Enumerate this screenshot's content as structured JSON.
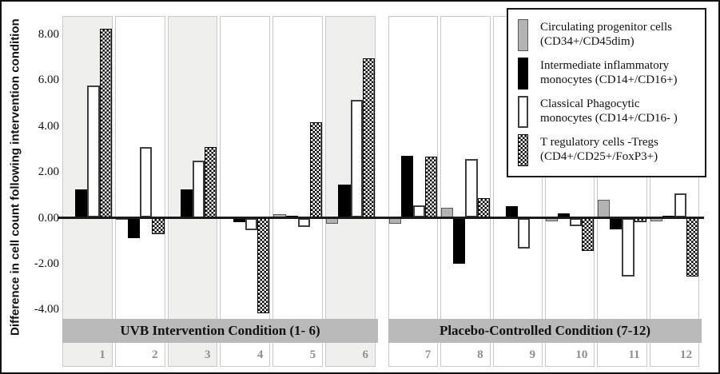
{
  "figure": {
    "y_axis_title": "Difference in cell count following intervention condition",
    "sections": [
      {
        "label": "UVB Intervention Condition (1- 6)"
      },
      {
        "label": "Placebo-Controlled Condition (7-12)"
      }
    ]
  },
  "chart_data": {
    "type": "bar",
    "title": "",
    "xlabel": "",
    "ylabel": "Difference in cell count following intervention condition",
    "ylim": [
      -4.6,
      8.8
    ],
    "grid": false,
    "legend_position": "top-right",
    "yticks": [
      8,
      6,
      4,
      2,
      0,
      -2,
      -4
    ],
    "ytick_labels": [
      "8.00",
      "6.00",
      "4.00",
      "2.00",
      "0.00",
      "-2.00",
      "-4.00"
    ],
    "categories": [
      "1",
      "2",
      "3",
      "4",
      "5",
      "6",
      "7",
      "8",
      "9",
      "10",
      "11",
      "12"
    ],
    "shaded_categories": [
      "1",
      "3",
      "6"
    ],
    "section_ranges": [
      {
        "label": "UVB Intervention Condition (1- 6)",
        "from": "1",
        "to": "6"
      },
      {
        "label": "Placebo-Controlled Condition (7-12)",
        "from": "7",
        "to": "12"
      }
    ],
    "series": [
      {
        "name": "Circulating progenitor cells\n(CD34+/CD45dim)",
        "style": "gray",
        "color": "#b3b3b3",
        "values": [
          0,
          -0.1,
          0,
          0,
          0.15,
          -0.25,
          -0.25,
          0.45,
          0,
          -0.15,
          0.8,
          -0.15
        ]
      },
      {
        "name": "Intermediate inflammatory\nmonocytes (CD14+/CD16+)",
        "style": "black",
        "color": "#000000",
        "values": [
          1.25,
          -0.9,
          1.25,
          -0.2,
          0.1,
          1.45,
          2.7,
          -2.0,
          0.5,
          0.2,
          -0.5,
          0.1
        ]
      },
      {
        "name": "Classical Phagocytic\nmonocytes (CD14+/CD16- )",
        "style": "white",
        "color": "#ffffff",
        "values": [
          5.75,
          3.1,
          2.5,
          -0.55,
          -0.4,
          5.15,
          0.55,
          2.55,
          -1.35,
          -0.35,
          -2.55,
          1.05
        ]
      },
      {
        "name": "T regulatory cells -Tregs\n(CD4+/CD25+/FoxP3+)",
        "style": "checker",
        "color": "checkerboard-black-white",
        "values": [
          8.25,
          -0.7,
          3.1,
          -4.15,
          4.15,
          6.95,
          2.65,
          0.85,
          0,
          -1.45,
          -0.2,
          -2.55
        ]
      }
    ]
  }
}
